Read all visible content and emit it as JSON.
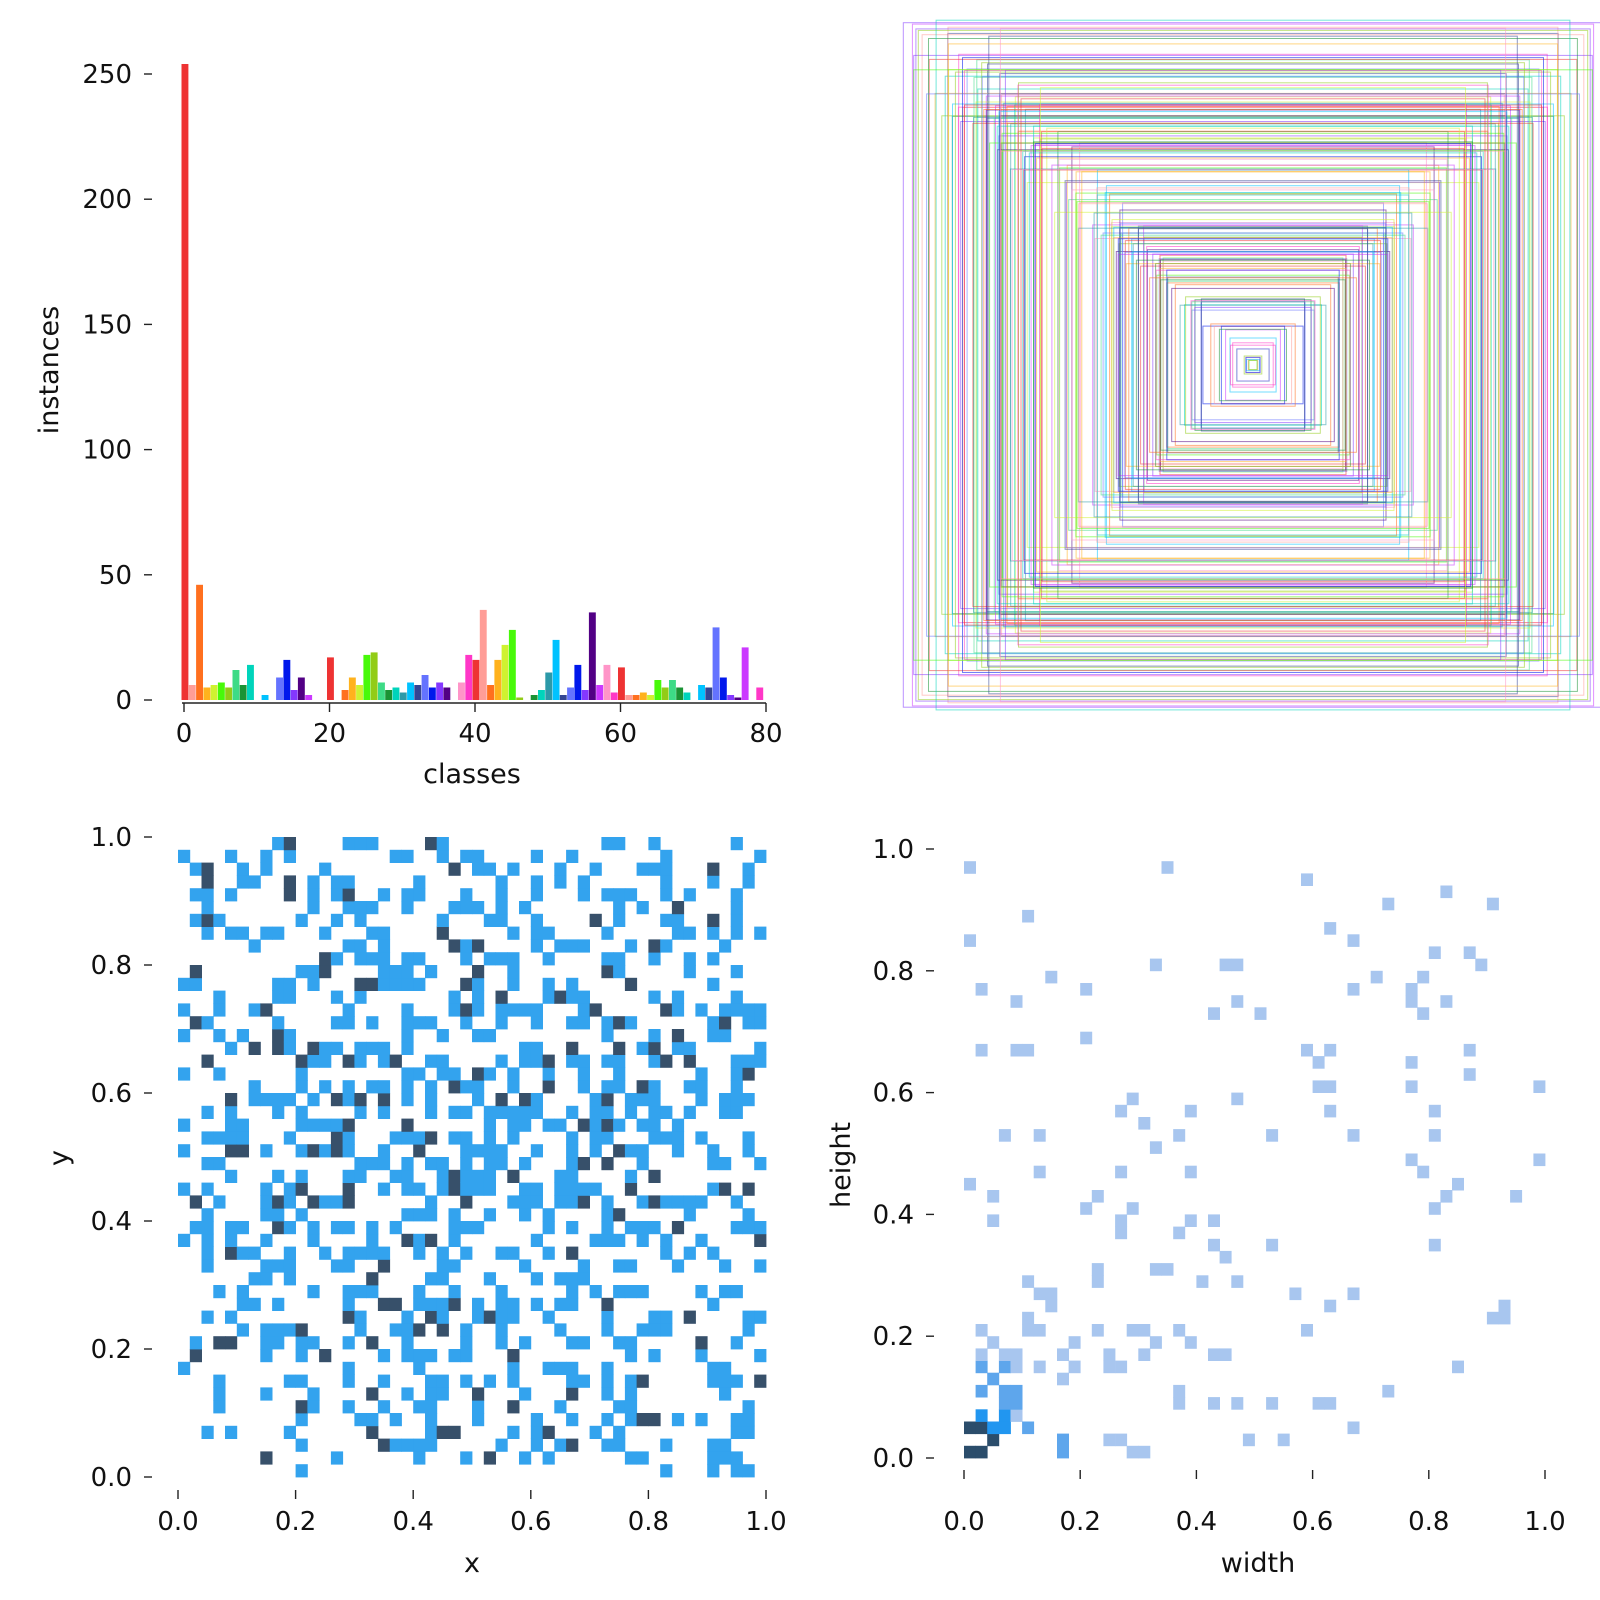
{
  "chart_data": [
    {
      "type": "bar",
      "name": "class-histogram",
      "xlabel": "classes",
      "ylabel": "instances",
      "xlim": [
        0,
        80
      ],
      "ylim": [
        0,
        255
      ],
      "xticks": [
        "0",
        "20",
        "40",
        "60",
        "80"
      ],
      "xtick_values": [
        0,
        20,
        40,
        60,
        80
      ],
      "yticks": [
        "0",
        "50",
        "100",
        "150",
        "200",
        "250"
      ],
      "ytick_values": [
        0,
        50,
        100,
        150,
        200,
        250
      ],
      "categories": [
        0,
        1,
        2,
        3,
        4,
        5,
        6,
        7,
        8,
        9,
        10,
        11,
        12,
        13,
        14,
        15,
        16,
        17,
        18,
        19,
        20,
        21,
        22,
        23,
        24,
        25,
        26,
        27,
        28,
        29,
        30,
        31,
        32,
        33,
        34,
        35,
        36,
        37,
        38,
        39,
        40,
        41,
        42,
        43,
        44,
        45,
        46,
        47,
        48,
        49,
        50,
        51,
        52,
        53,
        54,
        55,
        56,
        57,
        58,
        59,
        60,
        61,
        62,
        63,
        64,
        65,
        66,
        67,
        68,
        69,
        70,
        71,
        72,
        73,
        74,
        75,
        76,
        77,
        78,
        79
      ],
      "values": [
        254,
        6,
        46,
        5,
        6,
        7,
        5,
        12,
        6,
        14,
        0,
        2,
        0,
        9,
        16,
        4,
        9,
        2,
        0,
        0,
        17,
        0,
        4,
        9,
        6,
        18,
        19,
        7,
        4,
        5,
        3,
        7,
        6,
        10,
        5,
        7,
        5,
        0,
        7,
        18,
        16,
        36,
        6,
        16,
        22,
        28,
        1,
        0,
        2,
        4,
        11,
        24,
        2,
        5,
        14,
        4,
        35,
        6,
        14,
        3,
        13,
        2,
        2,
        3,
        2,
        8,
        5,
        8,
        5,
        3,
        0,
        6,
        5,
        29,
        9,
        2,
        1,
        21,
        0,
        5
      ],
      "colors": [
        "#ee3333",
        "#ff9d97",
        "#ff701f",
        "#ffb21d",
        "#cff231",
        "#48f90a",
        "#92cc17",
        "#3ddb86",
        "#1a9334",
        "#00d4bb",
        "#2c99a8",
        "#00c2ff",
        "#344593",
        "#6473ff",
        "#0018ec",
        "#8438ff",
        "#520085",
        "#cb38ff",
        "#ff95c8",
        "#ff37c7"
      ]
    },
    {
      "type": "boxes",
      "name": "box-overlay",
      "description_free": true,
      "box_count": 200,
      "colors": [
        "#ee3333",
        "#ff9d97",
        "#ff701f",
        "#ffb21d",
        "#cff231",
        "#48f90a",
        "#92cc17",
        "#3ddb86",
        "#1a9334",
        "#00d4bb",
        "#2c99a8",
        "#00c2ff",
        "#344593",
        "#6473ff",
        "#0018ec",
        "#8438ff",
        "#520085",
        "#cb38ff",
        "#ff95c8",
        "#ff37c7"
      ]
    },
    {
      "type": "heatmap",
      "name": "xy-histogram",
      "xlabel": "x",
      "ylabel": "y",
      "xlim": [
        0,
        1
      ],
      "ylim": [
        0,
        1
      ],
      "bins": 50,
      "xticks": [
        "0.0",
        "0.2",
        "0.4",
        "0.6",
        "0.8",
        "1.0"
      ],
      "yticks": [
        "0.0",
        "0.2",
        "0.4",
        "0.6",
        "0.8",
        "1.0"
      ],
      "tick_values": [
        0,
        0.2,
        0.4,
        0.6,
        0.8,
        1.0
      ],
      "light_color": "#33a3ee",
      "dark_color": "#37506a",
      "cell_density": 0.34,
      "dark_fraction": 0.15
    },
    {
      "type": "heatmap",
      "name": "wh-histogram",
      "xlabel": "width",
      "ylabel": "height",
      "xlim": [
        0,
        1
      ],
      "ylim": [
        0,
        1
      ],
      "bins": 50,
      "xticks": [
        "0.0",
        "0.2",
        "0.4",
        "0.6",
        "0.8",
        "1.0"
      ],
      "yticks": [
        "0.0",
        "0.2",
        "0.4",
        "0.6",
        "0.8",
        "1.0"
      ],
      "tick_values": [
        0,
        0.2,
        0.4,
        0.6,
        0.8,
        1.0
      ],
      "light_color": "#a8c6ef",
      "mid_color": "#5ea6ec",
      "strong_color": "#2196f0",
      "dark_color": "#2b4d6b"
    }
  ]
}
